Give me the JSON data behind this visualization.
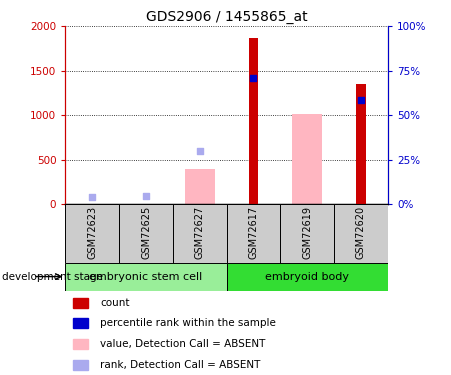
{
  "title": "GDS2906 / 1455865_at",
  "samples": [
    "GSM72623",
    "GSM72625",
    "GSM72627",
    "GSM72617",
    "GSM72619",
    "GSM72620"
  ],
  "groups": [
    {
      "label": "embryonic stem cell",
      "start": 0,
      "end": 2
    },
    {
      "label": "embryoid body",
      "start": 3,
      "end": 5
    }
  ],
  "red_bars": [
    null,
    null,
    null,
    1870,
    null,
    1350
  ],
  "pink_bars": [
    null,
    null,
    400,
    null,
    1020,
    null
  ],
  "blue_squares_val": [
    null,
    null,
    null,
    1420,
    null,
    1175
  ],
  "lightblue_squares_val": [
    80,
    90,
    600,
    null,
    null,
    null
  ],
  "ylim_left": [
    0,
    2000
  ],
  "ylim_right": [
    0,
    100
  ],
  "yticks_left": [
    0,
    500,
    1000,
    1500,
    2000
  ],
  "yticks_right": [
    0,
    25,
    50,
    75,
    100
  ],
  "ytick_labels_left": [
    "0",
    "500",
    "1000",
    "1500",
    "2000"
  ],
  "ytick_labels_right": [
    "0%",
    "25%",
    "50%",
    "75%",
    "100%"
  ],
  "red_color": "#CC0000",
  "pink_color": "#FFB6C1",
  "blue_color": "#0000CC",
  "lightblue_color": "#AAAAEE",
  "group_bg_gray": "#CCCCCC",
  "group_bg_green1": "#99EE99",
  "group_bg_green2": "#33DD33",
  "development_stage_label": "development stage",
  "legend_items": [
    {
      "label": "count",
      "color": "#CC0000"
    },
    {
      "label": "percentile rank within the sample",
      "color": "#0000CC"
    },
    {
      "label": "value, Detection Call = ABSENT",
      "color": "#FFB6C1"
    },
    {
      "label": "rank, Detection Call = ABSENT",
      "color": "#AAAAEE"
    }
  ]
}
